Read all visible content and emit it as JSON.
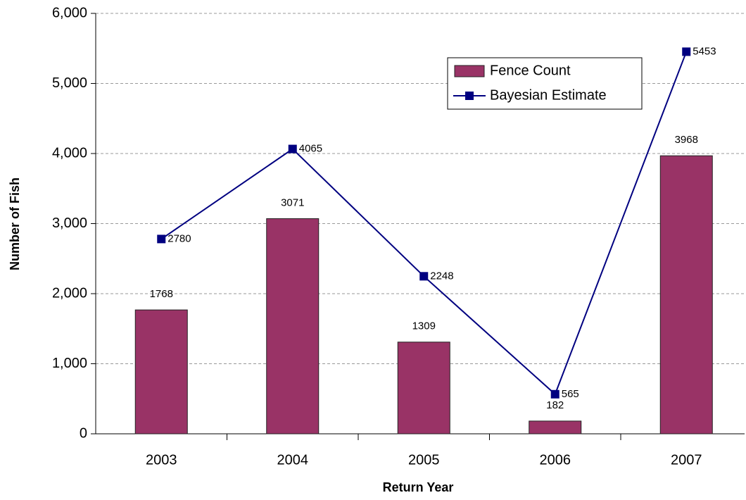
{
  "chart_data": {
    "type": "bar",
    "x_label": "Return Year",
    "y_label": "Number of Fish",
    "categories": [
      "2003",
      "2004",
      "2005",
      "2006",
      "2007"
    ],
    "series": [
      {
        "name": "Fence Count",
        "type": "bar",
        "color": "#993366",
        "values": [
          1768,
          3071,
          1309,
          182,
          3968
        ]
      },
      {
        "name": "Bayesian Estimate",
        "type": "line",
        "color": "#000080",
        "values": [
          2780,
          4065,
          2248,
          565,
          5453
        ]
      }
    ],
    "ylim": [
      0,
      6000
    ],
    "yticks": [
      0,
      {
        "value": 1000,
        "label": "1,000"
      },
      {
        "value": 2000,
        "label": "2,000"
      },
      {
        "value": 3000,
        "label": "3,000"
      },
      {
        "value": 4000,
        "label": "4,000"
      },
      {
        "value": 5000,
        "label": "5,000"
      },
      {
        "value": 6000,
        "label": "6,000"
      }
    ],
    "grid": true,
    "legend": "upper right"
  }
}
